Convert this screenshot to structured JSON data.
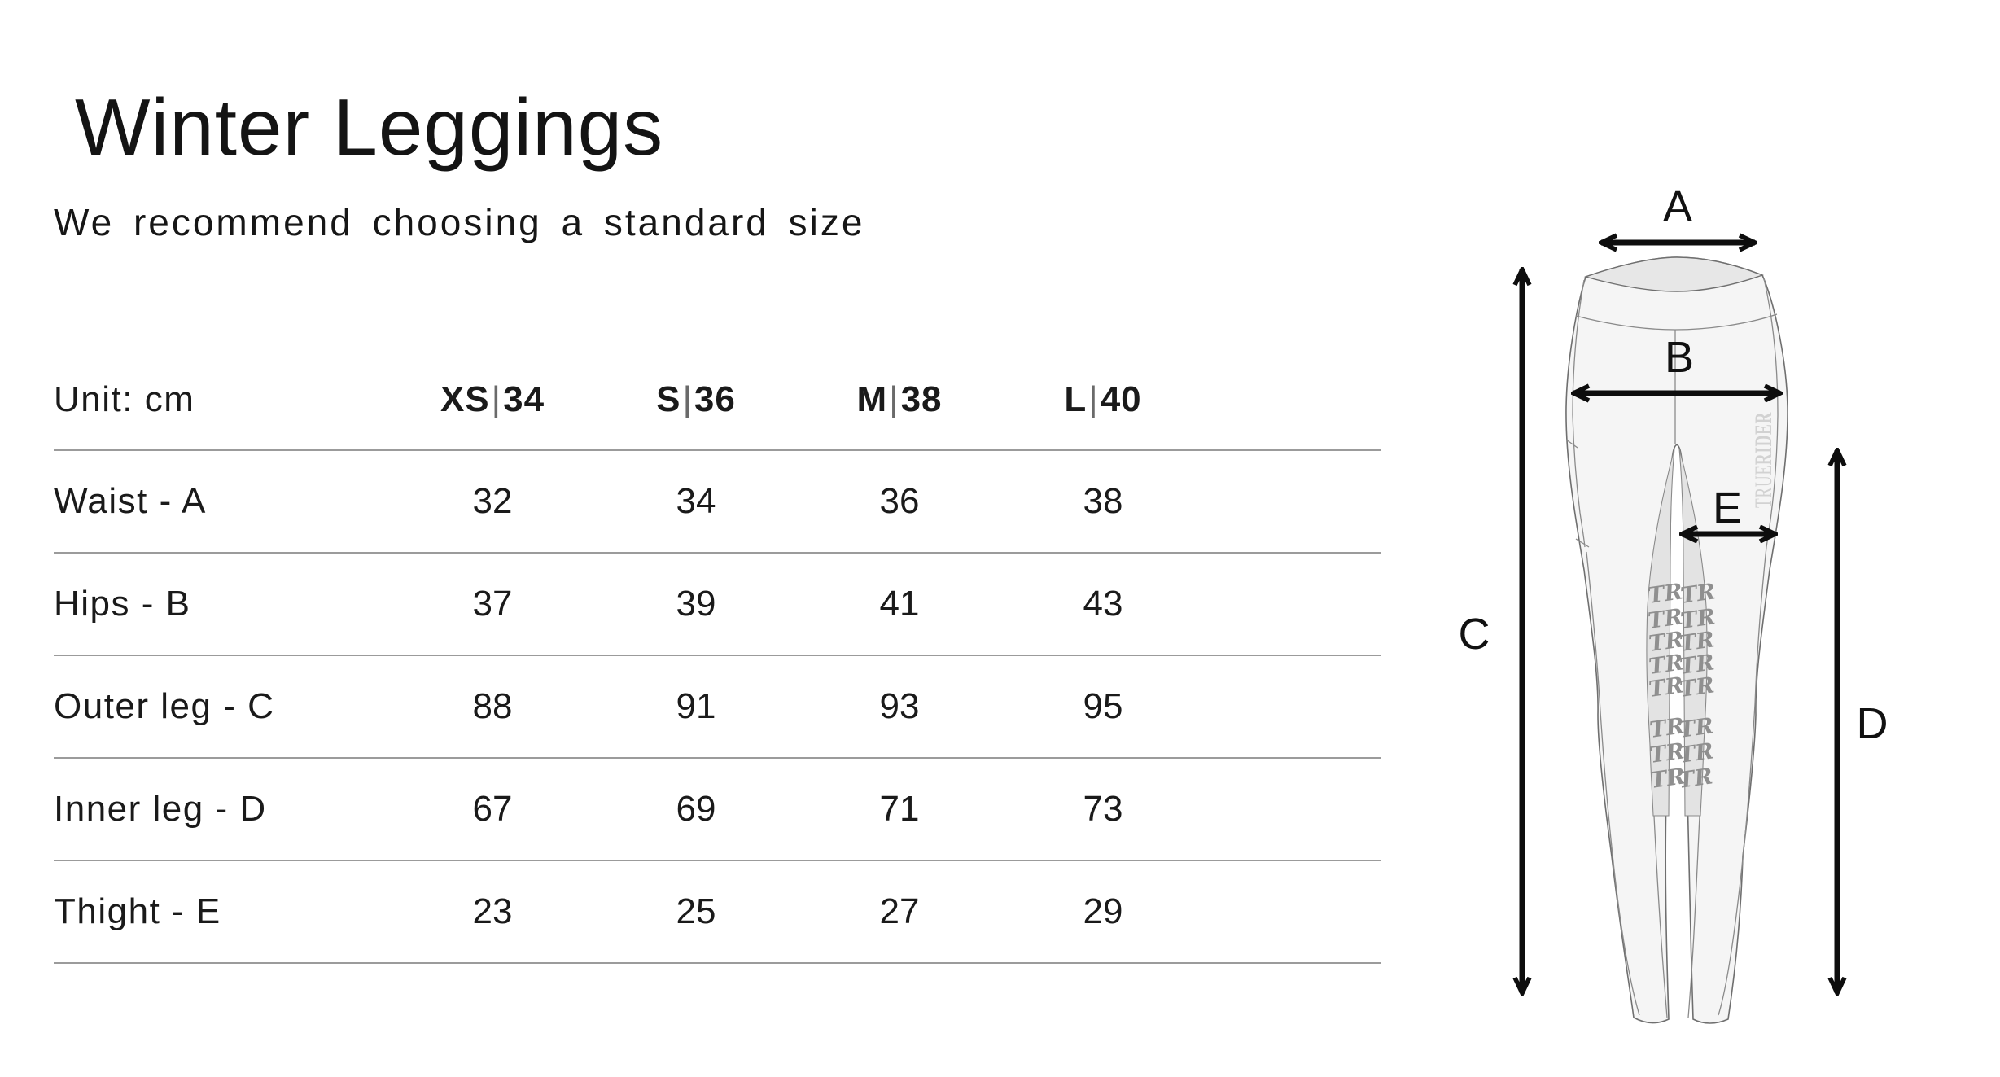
{
  "page": {
    "title": "Winter Leggings",
    "subtitle": "We recommend choosing a standard size"
  },
  "size_table": {
    "unit_label": "Unit: cm",
    "columns": [
      "XS|34",
      "S|36",
      "M|38",
      "L|40"
    ],
    "rows": [
      {
        "label": "Waist - A",
        "values": [
          "32",
          "34",
          "36",
          "38"
        ]
      },
      {
        "label": "Hips - B",
        "values": [
          "37",
          "39",
          "41",
          "43"
        ]
      },
      {
        "label": "Outer leg - C",
        "values": [
          "88",
          "91",
          "93",
          "95"
        ]
      },
      {
        "label": "Inner leg - D",
        "values": [
          "67",
          "69",
          "71",
          "73"
        ]
      },
      {
        "label": "Thight - E",
        "values": [
          "23",
          "25",
          "27",
          "29"
        ]
      }
    ]
  },
  "diagram": {
    "letters": {
      "a": "A",
      "b": "B",
      "c": "C",
      "d": "D",
      "e": "E"
    },
    "watermark_thin": "TRUE",
    "watermark_bold": "RIDER",
    "grip_logo": "TR"
  },
  "colors": {
    "text": "#171717",
    "table_line": "#9b9b9b",
    "garment_fill": "#f5f5f5",
    "garment_outline": "#6f6f6f",
    "waist_opening": "#e7e7e7",
    "gusset": "#e3e3e3",
    "watermark": "#d2d2d2",
    "arrow": "#0d0d0d"
  }
}
